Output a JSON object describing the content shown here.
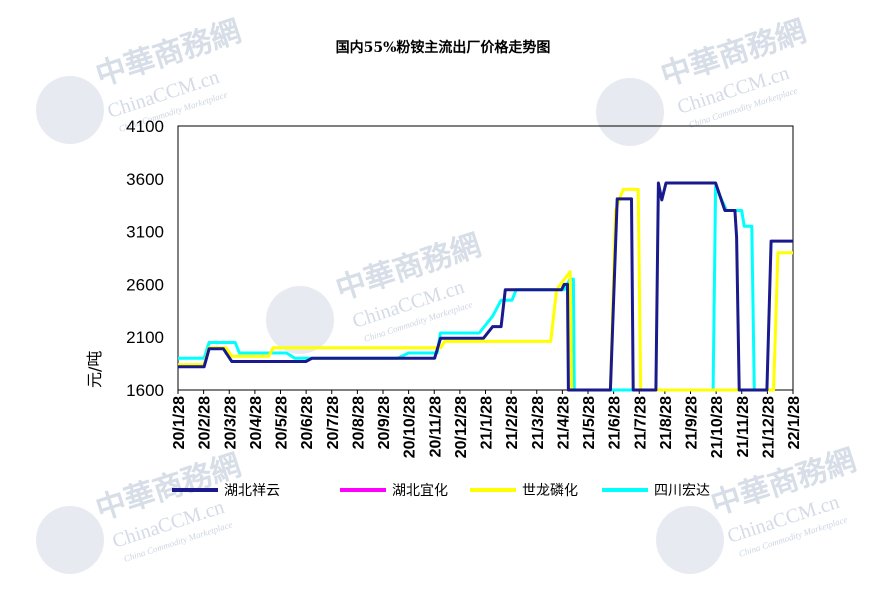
{
  "chart_data": {
    "type": "line",
    "title": "国内55%粉铵主流出厂价格走势图",
    "ylabel": "元/吨",
    "xlabel": "",
    "ylim": [
      1600,
      4100
    ],
    "yticks": [
      1600,
      2100,
      2600,
      3100,
      3600,
      4100
    ],
    "xlim": [
      "2020-01-28",
      "2022-01-28"
    ],
    "xtick_labels": [
      "20/1/28",
      "20/2/28",
      "20/3/28",
      "20/4/28",
      "20/5/28",
      "20/6/28",
      "20/7/28",
      "20/8/28",
      "20/9/28",
      "20/10/28",
      "20/11/28",
      "20/12/28",
      "21/1/28",
      "21/2/28",
      "21/3/28",
      "21/4/28",
      "21/5/28",
      "21/6/28",
      "21/7/28",
      "21/8/28",
      "21/9/28",
      "21/10/28",
      "21/11/28",
      "21/12/28",
      "22/1/28"
    ],
    "legend_position": "bottom",
    "grid": false,
    "series": [
      {
        "name": "湖北祥云",
        "color": "#1a1a8c",
        "points": [
          [
            "2020-01-28",
            1820
          ],
          [
            "2020-02-28",
            1820
          ],
          [
            "2020-03-05",
            1990
          ],
          [
            "2020-03-22",
            1990
          ],
          [
            "2020-04-01",
            1870
          ],
          [
            "2020-06-28",
            1870
          ],
          [
            "2020-07-05",
            1900
          ],
          [
            "2020-11-28",
            1900
          ],
          [
            "2020-12-05",
            2090
          ],
          [
            "2021-01-25",
            2090
          ],
          [
            "2021-02-05",
            2200
          ],
          [
            "2021-02-15",
            2200
          ],
          [
            "2021-02-20",
            2550
          ],
          [
            "2021-04-28",
            2550
          ],
          [
            "2021-05-01",
            2600
          ],
          [
            "2021-05-05",
            2600
          ],
          [
            "2021-05-06",
            1600
          ],
          [
            "2021-06-25",
            1600
          ],
          [
            "2021-07-03",
            3410
          ],
          [
            "2021-07-20",
            3410
          ],
          [
            "2021-07-22",
            1600
          ],
          [
            "2021-08-18",
            1600
          ],
          [
            "2021-08-21",
            3560
          ],
          [
            "2021-08-25",
            3400
          ],
          [
            "2021-08-30",
            3560
          ],
          [
            "2021-10-28",
            3560
          ],
          [
            "2021-11-08",
            3300
          ],
          [
            "2021-11-20",
            3300
          ],
          [
            "2021-11-22",
            3050
          ],
          [
            "2021-11-25",
            1600
          ],
          [
            "2021-12-28",
            1600
          ],
          [
            "2022-01-02",
            3010
          ],
          [
            "2022-01-28",
            3010
          ]
        ]
      },
      {
        "name": "湖北宜化",
        "color": "#ff00ff",
        "points": []
      },
      {
        "name": "世龙磷化",
        "color": "#ffff00",
        "points": [
          [
            "2020-01-28",
            1840
          ],
          [
            "2020-02-28",
            1840
          ],
          [
            "2020-03-05",
            2000
          ],
          [
            "2020-03-25",
            2000
          ],
          [
            "2020-04-01",
            1920
          ],
          [
            "2020-05-15",
            1920
          ],
          [
            "2020-05-20",
            2000
          ],
          [
            "2020-12-05",
            2000
          ],
          [
            "2020-12-10",
            2060
          ],
          [
            "2021-04-15",
            2060
          ],
          [
            "2021-04-22",
            2550
          ],
          [
            "2021-05-08",
            2720
          ],
          [
            "2021-05-10",
            1600
          ],
          [
            "2021-06-25",
            1600
          ],
          [
            "2021-07-01",
            3300
          ],
          [
            "2021-07-10",
            3500
          ],
          [
            "2021-07-28",
            3500
          ],
          [
            "2021-07-31",
            1600
          ],
          [
            "2022-01-05",
            1600
          ],
          [
            "2022-01-10",
            2900
          ],
          [
            "2022-01-28",
            2900
          ]
        ]
      },
      {
        "name": "四川宏达",
        "color": "#00ffff",
        "points": [
          [
            "2020-01-28",
            1900
          ],
          [
            "2020-02-28",
            1900
          ],
          [
            "2020-03-05",
            2050
          ],
          [
            "2020-04-05",
            2050
          ],
          [
            "2020-04-10",
            1950
          ],
          [
            "2020-06-05",
            1950
          ],
          [
            "2020-06-15",
            1900
          ],
          [
            "2020-10-15",
            1900
          ],
          [
            "2020-10-28",
            1950
          ],
          [
            "2020-12-01",
            1950
          ],
          [
            "2020-12-05",
            2140
          ],
          [
            "2021-01-20",
            2140
          ],
          [
            "2021-02-05",
            2300
          ],
          [
            "2021-02-15",
            2450
          ],
          [
            "2021-02-28",
            2450
          ],
          [
            "2021-03-05",
            2550
          ],
          [
            "2021-05-01",
            2550
          ],
          [
            "2021-05-08",
            2650
          ],
          [
            "2021-05-12",
            2650
          ],
          [
            "2021-05-13",
            1600
          ],
          [
            "2021-10-25",
            1600
          ],
          [
            "2021-10-28",
            3530
          ],
          [
            "2021-11-10",
            3300
          ],
          [
            "2021-11-28",
            3300
          ],
          [
            "2021-12-01",
            3150
          ],
          [
            "2021-12-10",
            3150
          ],
          [
            "2021-12-13",
            1600
          ],
          [
            "2021-12-20",
            1600
          ],
          [
            "2021-12-22",
            1600
          ]
        ]
      }
    ]
  },
  "watermark": {
    "cn": "中華商務網",
    "en": "ChinaCCM.cn",
    "sub": "China Commodity Marketplace",
    "color": "#b8c4d6"
  }
}
